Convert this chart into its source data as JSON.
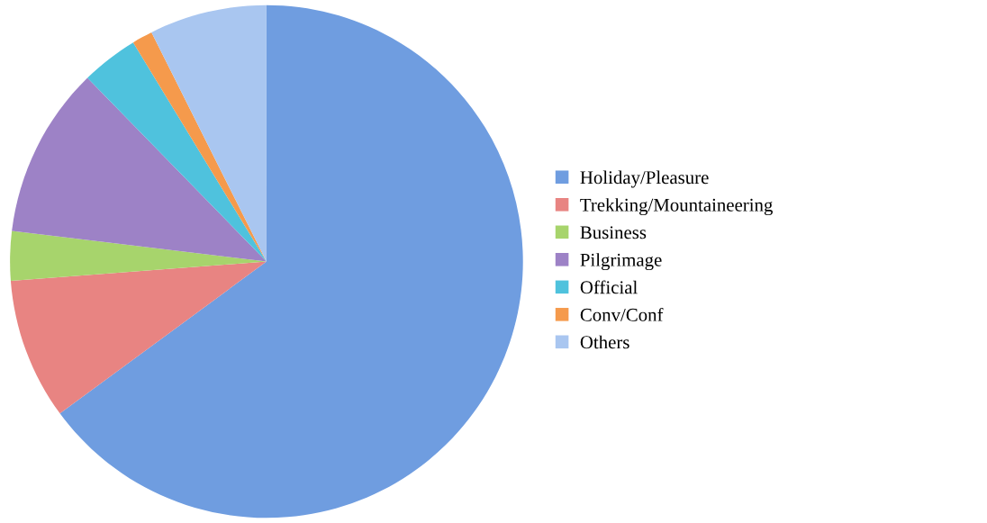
{
  "chart_data": {
    "type": "pie",
    "categories": [
      "Holiday/Pleasure",
      "Trekking/Mountaineering",
      "Business",
      "Pilgrimage",
      "Official",
      "Conv/Conf",
      "Others"
    ],
    "values": [
      64.9,
      8.9,
      3.1,
      10.8,
      3.6,
      1.3,
      7.4
    ],
    "colors": [
      "#6f9de0",
      "#e88482",
      "#a7d46c",
      "#9d82c6",
      "#4fc2dd",
      "#f59a4c",
      "#a9c6f0"
    ],
    "legend": "right"
  }
}
